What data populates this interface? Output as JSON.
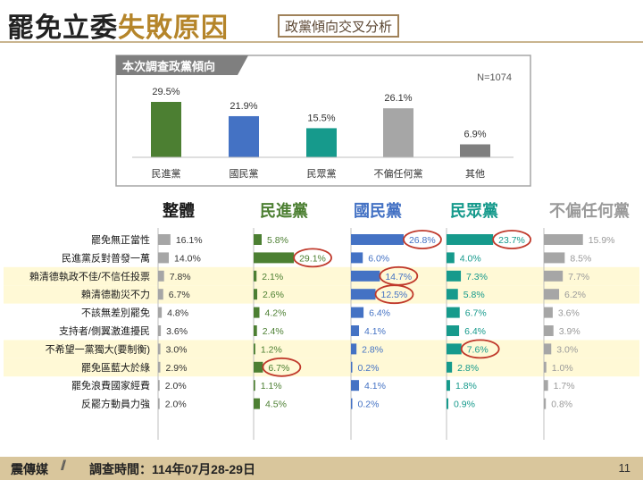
{
  "header": {
    "title_main": "罷免立委",
    "title_highlight": "失敗原因",
    "subtitle": "政黨傾向交叉分析"
  },
  "colors": {
    "dpp": "#4c7f32",
    "kmt": "#4472c4",
    "tpp": "#169a8c",
    "neutral": "#a6a6a6",
    "other": "#7f7f7f",
    "highlight_band": "#fff9d6",
    "circle": "#c0392b"
  },
  "chart_data": [
    {
      "type": "bar",
      "title": "本次調查政黨傾向",
      "note": "N=1074",
      "categories": [
        "民進黨",
        "國民黨",
        "民眾黨",
        "不偏任何黨",
        "其他"
      ],
      "values": [
        29.5,
        21.9,
        15.5,
        26.1,
        6.9
      ],
      "value_labels": [
        "29.5%",
        "21.9%",
        "15.5%",
        "26.1%",
        "6.9%"
      ],
      "ylim": [
        0,
        30
      ]
    },
    {
      "type": "bar",
      "orientation": "horizontal",
      "categories": [
        "罷免無正當性",
        "民進黨反對普發一萬",
        "賴清德執政不佳/不信任投票",
        "賴清德勘災不力",
        "不該無差別罷免",
        "支持者/側翼激進擾民",
        "不希望一黨獨大(要制衡)",
        "罷免區藍大於綠",
        "罷免浪費國家經費",
        "反罷方動員力強"
      ],
      "highlighted_rows": [
        2,
        3,
        6,
        7
      ],
      "series": [
        {
          "name": "整體",
          "values": [
            16.1,
            14.0,
            7.8,
            6.7,
            4.8,
            3.6,
            3.0,
            2.9,
            2.0,
            2.0
          ],
          "circled": []
        },
        {
          "name": "民進黨",
          "values": [
            5.8,
            29.1,
            2.1,
            2.6,
            4.2,
            2.4,
            1.2,
            6.7,
            1.1,
            4.5
          ],
          "circled": [
            1,
            7
          ]
        },
        {
          "name": "國民黨",
          "values": [
            26.8,
            6.0,
            14.7,
            12.5,
            6.4,
            4.1,
            2.8,
            0.2,
            4.1,
            0.2
          ],
          "circled": [
            0,
            2,
            3
          ]
        },
        {
          "name": "民眾黨",
          "values": [
            23.7,
            4.0,
            7.3,
            5.8,
            6.7,
            6.4,
            7.6,
            2.8,
            1.8,
            0.9
          ],
          "circled": [
            0,
            6
          ]
        },
        {
          "name": "不偏任何黨",
          "values": [
            15.9,
            8.5,
            7.7,
            6.2,
            3.6,
            3.9,
            3.0,
            1.0,
            1.7,
            0.8
          ],
          "circled": []
        }
      ]
    }
  ],
  "footer": {
    "brand": "震傳媒",
    "slash": "//",
    "survey_date": "調查時間：114年07月28-29日",
    "page_number": "11"
  }
}
